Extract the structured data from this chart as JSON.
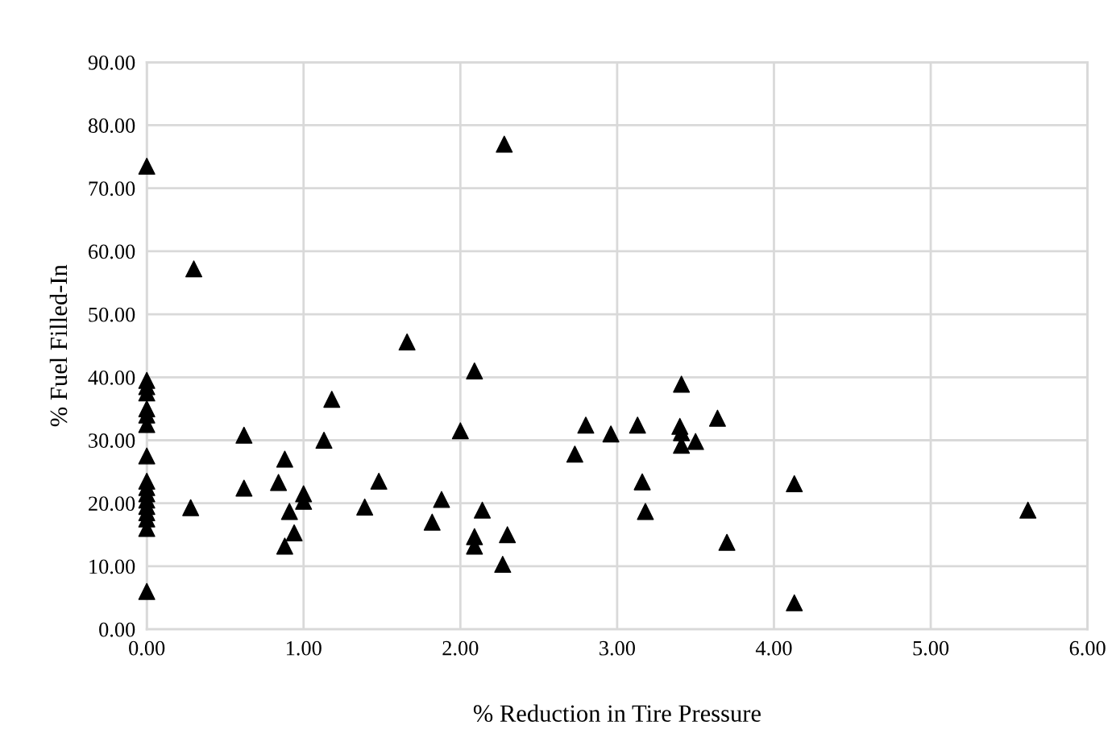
{
  "chart_data": {
    "type": "scatter",
    "xlabel": "% Reduction in Tire Pressure",
    "ylabel": "% Fuel Filled-In",
    "x": [
      0,
      0,
      0,
      0,
      0,
      0,
      0,
      0,
      0,
      0,
      0,
      0,
      0,
      0,
      0,
      0,
      0,
      0.28,
      0.3,
      0.62,
      0.62,
      0.84,
      0.88,
      0.88,
      0.91,
      0.94,
      1.0,
      1.0,
      1.13,
      1.18,
      1.39,
      1.48,
      1.66,
      1.82,
      1.88,
      2.0,
      2.09,
      2.09,
      2.09,
      2.14,
      2.27,
      2.28,
      2.3,
      2.73,
      2.8,
      2.96,
      3.13,
      3.16,
      3.18,
      3.41,
      3.4,
      3.41,
      3.41,
      3.5,
      3.64,
      3.7,
      4.13,
      4.13,
      5.62
    ],
    "series": [
      {
        "color": "#000000",
        "values": [
          73.5,
          39.5,
          38.5,
          37.5,
          35,
          34,
          32.5,
          27.5,
          23.5,
          22.5,
          21.5,
          20.5,
          19.5,
          18.5,
          17.5,
          16,
          6,
          19.3,
          57.2,
          30.8,
          22.4,
          23.3,
          27.0,
          13.2,
          18.7,
          15.3,
          21.5,
          20.3,
          30.0,
          36.5,
          19.4,
          23.5,
          45.6,
          17.0,
          20.6,
          31.5,
          41.0,
          14.7,
          13.2,
          18.9,
          10.3,
          77.0,
          15.0,
          27.8,
          32.4,
          31.0,
          32.4,
          23.4,
          18.7,
          38.9,
          32.2,
          31.2,
          29.2,
          29.8,
          33.5,
          13.8,
          23.1,
          4.2,
          18.9
        ]
      }
    ],
    "marker": "triangle",
    "grid": true,
    "legend": false,
    "xlim": [
      0,
      6
    ],
    "xticks": [
      {
        "value": 0,
        "label": "0.00"
      },
      {
        "value": 1,
        "label": "1.00"
      },
      {
        "value": 2,
        "label": "2.00"
      },
      {
        "value": 3,
        "label": "3.00"
      },
      {
        "value": 4,
        "label": "4.00"
      },
      {
        "value": 5,
        "label": "5.00"
      },
      {
        "value": 6,
        "label": "6.00"
      }
    ],
    "ylim": [
      0,
      90
    ],
    "yticks": [
      {
        "value": 0,
        "label": "0.00"
      },
      {
        "value": 10,
        "label": "10.00"
      },
      {
        "value": 20,
        "label": "20.00"
      },
      {
        "value": 30,
        "label": "30.00"
      },
      {
        "value": 40,
        "label": "40.00"
      },
      {
        "value": 50,
        "label": "50.00"
      },
      {
        "value": 60,
        "label": "60.00"
      },
      {
        "value": 70,
        "label": "70.00"
      },
      {
        "value": 80,
        "label": "80.00"
      },
      {
        "value": 90,
        "label": "90.00"
      }
    ]
  }
}
